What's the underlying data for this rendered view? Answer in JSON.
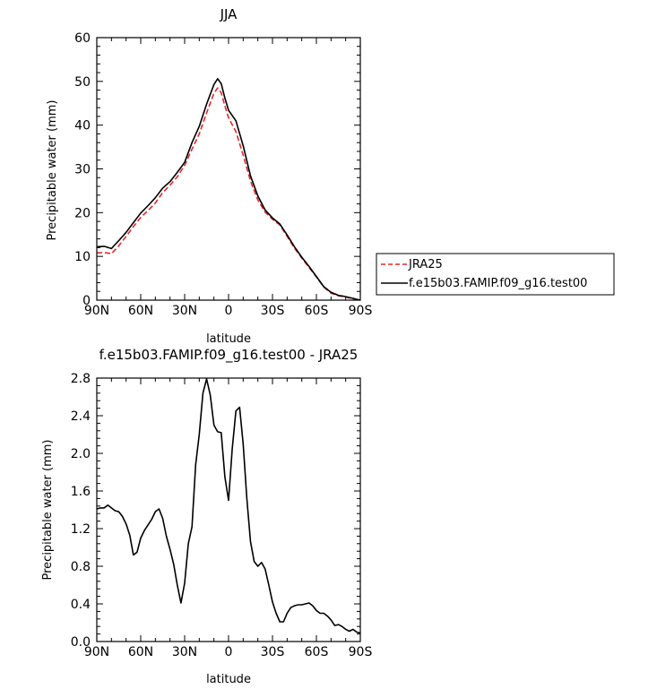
{
  "chart_data": [
    {
      "type": "line",
      "title": "JJA",
      "xlabel": "latitude",
      "ylabel": "Precipitable water (mm)",
      "xlim": [
        90,
        -90
      ],
      "ylim": [
        0,
        60
      ],
      "xticks": [
        90,
        60,
        30,
        0,
        -30,
        -60,
        -90
      ],
      "xtick_labels": [
        "90N",
        "60N",
        "30N",
        "0",
        "30S",
        "60S",
        "90S"
      ],
      "yticks": [
        0,
        10,
        20,
        30,
        40,
        50,
        60
      ],
      "ytick_labels": [
        "0",
        "10",
        "20",
        "30",
        "40",
        "50",
        "60"
      ],
      "grid": false,
      "legend": "right",
      "series": [
        {
          "name": "JRA25",
          "color": "#e8262a",
          "dash": true,
          "x": [
            90,
            85,
            80,
            75,
            70,
            65,
            60,
            55,
            50,
            45,
            40,
            35,
            30,
            25,
            20,
            15,
            10,
            7.5,
            5,
            2.5,
            0,
            -5,
            -10,
            -15,
            -20,
            -25,
            -30,
            -35,
            -40,
            -45,
            -50,
            -55,
            -60,
            -65,
            -70,
            -75,
            -80,
            -85,
            -90
          ],
          "values": [
            10.8,
            10.9,
            10.6,
            12.4,
            14.6,
            16.8,
            18.9,
            20.5,
            22.2,
            24.6,
            26.3,
            28.2,
            30.8,
            34.5,
            38.0,
            42.8,
            47.3,
            48.5,
            47.4,
            44.4,
            41.7,
            38.5,
            33.2,
            27.2,
            22.9,
            20.1,
            18.5,
            17.2,
            14.6,
            11.9,
            9.6,
            7.5,
            5.3,
            3.0,
            1.6,
            1.0,
            0.7,
            0.3,
            0.0
          ]
        },
        {
          "name": "f.e15b03.FAMIP.f09_g16.test00",
          "color": "#000000",
          "dash": false,
          "x": [
            90,
            85,
            80,
            75,
            70,
            65,
            60,
            55,
            50,
            45,
            40,
            35,
            30,
            25,
            20,
            15,
            10,
            7.5,
            5,
            2.5,
            0,
            -5,
            -10,
            -15,
            -20,
            -25,
            -30,
            -35,
            -40,
            -45,
            -50,
            -55,
            -60,
            -65,
            -70,
            -75,
            -80,
            -85,
            -90
          ],
          "values": [
            12.2,
            12.3,
            11.8,
            13.6,
            15.5,
            17.7,
            19.9,
            21.6,
            23.4,
            25.6,
            27.1,
            29.2,
            31.5,
            36.0,
            39.7,
            44.8,
            49.3,
            50.6,
            49.5,
            46.2,
            43.4,
            41.0,
            35.3,
            28.4,
            23.8,
            20.6,
            18.8,
            17.4,
            14.9,
            12.2,
            9.8,
            7.7,
            5.4,
            3.1,
            1.8,
            1.1,
            0.8,
            0.4,
            0.0
          ]
        }
      ]
    },
    {
      "type": "line",
      "title": "f.e15b03.FAMIP.f09_g16.test00 - JRA25",
      "xlabel": "latitude",
      "ylabel": "Precipitable water (mm)",
      "xlim": [
        90,
        -90
      ],
      "ylim": [
        0,
        2.8
      ],
      "xticks": [
        90,
        60,
        30,
        0,
        -30,
        -60,
        -90
      ],
      "xtick_labels": [
        "90N",
        "60N",
        "30N",
        "0",
        "30S",
        "60S",
        "90S"
      ],
      "yticks": [
        0,
        0.4,
        0.8,
        1.2,
        1.6,
        2.0,
        2.4,
        2.8
      ],
      "ytick_labels": [
        "0.0",
        "0.4",
        "0.8",
        "1.2",
        "1.6",
        "2.0",
        "2.4",
        "2.8"
      ],
      "grid": false,
      "series": [
        {
          "color": "#000000",
          "x": [
            90,
            87.5,
            85,
            82.5,
            80,
            77.5,
            75,
            72.5,
            70,
            67.5,
            65,
            62.5,
            60,
            57.5,
            55,
            52.5,
            50,
            47.5,
            45,
            42.5,
            40,
            37.5,
            35,
            32.5,
            30,
            27.5,
            25,
            22.5,
            20,
            17.5,
            15,
            12.5,
            10,
            7.5,
            5,
            2.5,
            0,
            -2.5,
            -5,
            -7.5,
            -10,
            -12.5,
            -15,
            -17.5,
            -20,
            -22.5,
            -25,
            -27.5,
            -30,
            -32.5,
            -35,
            -37.5,
            -40,
            -42.5,
            -45,
            -47.5,
            -50,
            -52.5,
            -55,
            -57.5,
            -60,
            -62.5,
            -65,
            -67.5,
            -70,
            -72.5,
            -75,
            -77.5,
            -80,
            -82.5,
            -85,
            -87.5,
            -90
          ],
          "values": [
            1.41,
            1.42,
            1.42,
            1.45,
            1.42,
            1.39,
            1.38,
            1.33,
            1.25,
            1.13,
            0.92,
            0.95,
            1.1,
            1.18,
            1.24,
            1.3,
            1.38,
            1.41,
            1.31,
            1.12,
            0.98,
            0.82,
            0.6,
            0.41,
            0.62,
            1.04,
            1.22,
            1.88,
            2.2,
            2.64,
            2.79,
            2.62,
            2.3,
            2.23,
            2.22,
            1.75,
            1.5,
            2.05,
            2.45,
            2.49,
            2.1,
            1.52,
            1.06,
            0.85,
            0.8,
            0.84,
            0.77,
            0.6,
            0.42,
            0.3,
            0.21,
            0.21,
            0.3,
            0.36,
            0.38,
            0.39,
            0.39,
            0.4,
            0.41,
            0.38,
            0.33,
            0.3,
            0.3,
            0.27,
            0.23,
            0.17,
            0.18,
            0.16,
            0.13,
            0.11,
            0.13,
            0.1,
            0.09
          ]
        }
      ]
    }
  ]
}
